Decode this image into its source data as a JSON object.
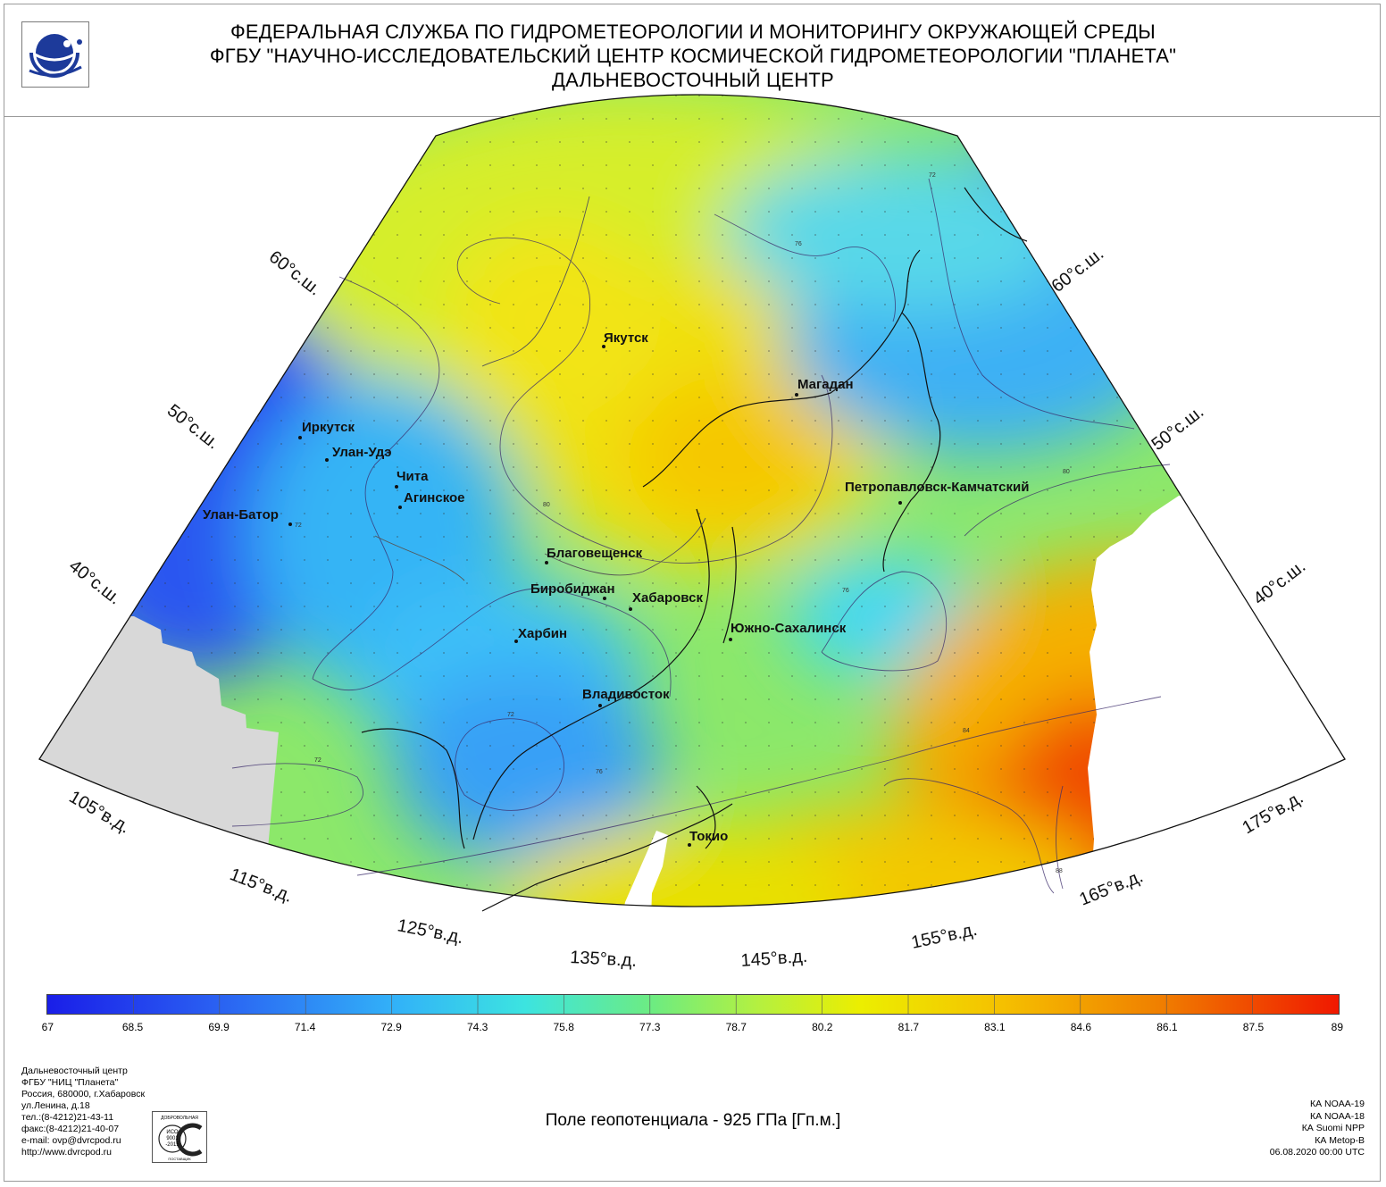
{
  "header": {
    "line1": "ФЕДЕРАЛЬНАЯ СЛУЖБА ПО ГИДРОМЕТЕОРОЛОГИИ И МОНИТОРИНГУ ОКРУЖАЮЩЕЙ СРЕДЫ",
    "line2": "ФГБУ \"НАУЧНО-ИССЛЕДОВАТЕЛЬСКИЙ ЦЕНТР КОСМИЧЕСКОЙ ГИДРОМЕТЕОРОЛОГИИ \"ПЛАНЕТА\"",
    "line3": "ДАЛЬНЕВОСТОЧНЫЙ ЦЕНТР"
  },
  "map": {
    "cities": [
      "Якутск",
      "Магадан",
      "Иркутск",
      "Улан-Удэ",
      "Чита",
      "Агинское",
      "Улан-Батор",
      "Петропавловск-Камчатский",
      "Благовещенск",
      "Биробиджан",
      "Хабаровск",
      "Харбин",
      "Южно-Сахалинск",
      "Владивосток",
      "Токио"
    ],
    "latitude_labels": {
      "left": [
        "60°с.ш.",
        "50°с.ш.",
        "40°с.ш."
      ],
      "right": [
        "60°с.ш.",
        "50°с.ш.",
        "40°с.ш."
      ]
    },
    "longitude_labels": [
      "105°в.д.",
      "115°в.д.",
      "125°в.д.",
      "135°в.д.",
      "145°в.д.",
      "155°в.д.",
      "165°в.д.",
      "175°в.д."
    ],
    "contour_labels": [
      "72",
      "76",
      "80",
      "84",
      "88"
    ],
    "colors": {
      "low": "#1a22e6",
      "mid": "#e8f000",
      "high": "#f01c00",
      "nodata": "#d8d8d8"
    }
  },
  "colorbar": {
    "ticks": [
      "67",
      "68.5",
      "69.9",
      "71.4",
      "72.9",
      "74.3",
      "75.8",
      "77.3",
      "78.7",
      "80.2",
      "81.7",
      "83.1",
      "84.6",
      "86.1",
      "87.5",
      "89"
    ],
    "range": [
      67,
      89
    ]
  },
  "footer": {
    "org_lines": [
      "Дальневосточный центр",
      "ФГБУ \"НИЦ \"Планета\"",
      "Россия, 680000, г.Хабаровск",
      "ул.Ленина, д.18",
      "тел.:(8-4212)21-43-11",
      "факс:(8-4212)21-40-07",
      "e-mail: ovp@dvrcpod.ru",
      "http://www.dvrcpod.ru"
    ],
    "cert_lines": [
      "ДОБРОВОЛЬНАЯ",
      "ИСО",
      "9001",
      "-2015",
      "ПОСТАВЩИК"
    ],
    "field_title": "Поле геопотенциала - 925 ГПа [Гп.м.]",
    "satellites": [
      "КА NOAA-19",
      "КА NOAA-18",
      "КА Suomi NPP",
      "КА Metop-B"
    ],
    "datetime": "06.08.2020 00:00 UTC"
  }
}
